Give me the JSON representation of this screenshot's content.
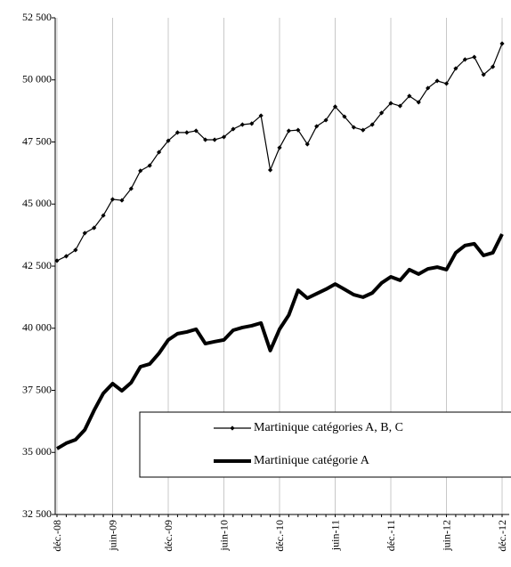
{
  "chart_data": {
    "type": "line",
    "categories": [
      "déc.-08",
      null,
      null,
      null,
      null,
      null,
      "juin-09",
      null,
      null,
      null,
      null,
      null,
      "déc.-09",
      null,
      null,
      null,
      null,
      null,
      "juin-10",
      null,
      null,
      null,
      null,
      null,
      "déc.-10",
      null,
      null,
      null,
      null,
      null,
      "juin-11",
      null,
      null,
      null,
      null,
      null,
      "déc.-11",
      null,
      null,
      null,
      null,
      null,
      "juin-12",
      null,
      null,
      null,
      null,
      null,
      "déc.-12"
    ],
    "series": [
      {
        "name": "Martinique catégories A, B, C",
        "color": "#000000",
        "line_width": 1.2,
        "marker": "diamond",
        "values": [
          42720,
          42900,
          43150,
          43830,
          44040,
          44540,
          45190,
          45150,
          45620,
          46340,
          46550,
          47090,
          47550,
          47880,
          47880,
          47950,
          47590,
          47590,
          47700,
          48020,
          48200,
          48240,
          48560,
          46370,
          47270,
          47950,
          47980,
          47410,
          48130,
          48380,
          48920,
          48520,
          48090,
          47980,
          48200,
          48670,
          49060,
          48950,
          49350,
          49100,
          49670,
          49960,
          49850,
          50460,
          50820,
          50920,
          50210,
          50530,
          51460
        ]
      },
      {
        "name": "Martinique catégorie A",
        "color": "#000000",
        "line_width": 4,
        "marker": null,
        "values": [
          35150,
          35370,
          35510,
          35910,
          36690,
          37380,
          37770,
          37480,
          37810,
          38450,
          38560,
          38990,
          39530,
          39780,
          39850,
          39960,
          39380,
          39460,
          39530,
          39920,
          40030,
          40100,
          40210,
          39100,
          39960,
          40530,
          41530,
          41210,
          41390,
          41570,
          41780,
          41570,
          41350,
          41250,
          41420,
          41820,
          42070,
          41930,
          42360,
          42180,
          42390,
          42460,
          42360,
          43040,
          43330,
          43400,
          42930,
          43040,
          43790
        ]
      }
    ],
    "ylim": [
      32500,
      52500
    ],
    "yticks": [
      {
        "value": 32500,
        "label": "32 500"
      },
      {
        "value": 35000,
        "label": "35 000"
      },
      {
        "value": 37500,
        "label": "37 500"
      },
      {
        "value": 40000,
        "label": "40 000"
      },
      {
        "value": 42500,
        "label": "42 500"
      },
      {
        "value": 45000,
        "label": "45 000"
      },
      {
        "value": 47500,
        "label": "47 500"
      },
      {
        "value": 50000,
        "label": "50 000"
      },
      {
        "value": 52500,
        "label": "52 500"
      }
    ],
    "grid": true,
    "legend": "lower-right"
  }
}
